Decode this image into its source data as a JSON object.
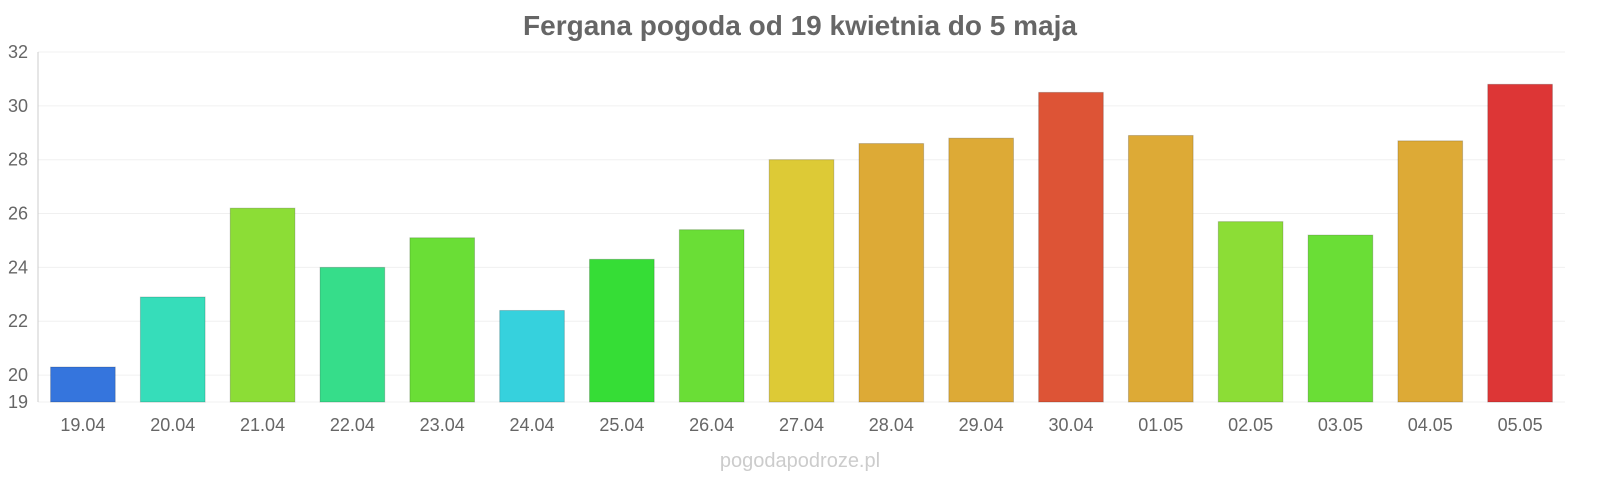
{
  "chart_data": {
    "type": "bar",
    "title": "Fergana pogoda od 19 kwietnia do 5 maja",
    "categories": [
      "19.04",
      "20.04",
      "21.04",
      "22.04",
      "23.04",
      "24.04",
      "25.04",
      "26.04",
      "27.04",
      "28.04",
      "29.04",
      "30.04",
      "01.05",
      "02.05",
      "03.05",
      "04.05",
      "05.05"
    ],
    "values": [
      20.3,
      22.9,
      26.2,
      24.0,
      25.1,
      22.4,
      24.3,
      25.4,
      28.0,
      28.6,
      28.8,
      30.5,
      28.9,
      25.7,
      25.2,
      28.7,
      30.8
    ],
    "colors": [
      "#3575dd",
      "#36ddba",
      "#8cdd36",
      "#36dd8a",
      "#6ade36",
      "#36d1dd",
      "#36dd36",
      "#6ade36",
      "#ddca36",
      "#ddaa36",
      "#ddaa36",
      "#dd5436",
      "#ddaa36",
      "#8cdd36",
      "#6ade36",
      "#ddaa36",
      "#dd3636"
    ],
    "xlabel": "",
    "ylabel": "",
    "ylim": [
      19,
      32
    ],
    "yticks": [
      19,
      20,
      22,
      24,
      26,
      28,
      30,
      32
    ],
    "grid": true,
    "legend": "none"
  },
  "watermark": "pogodapodroze.pl"
}
